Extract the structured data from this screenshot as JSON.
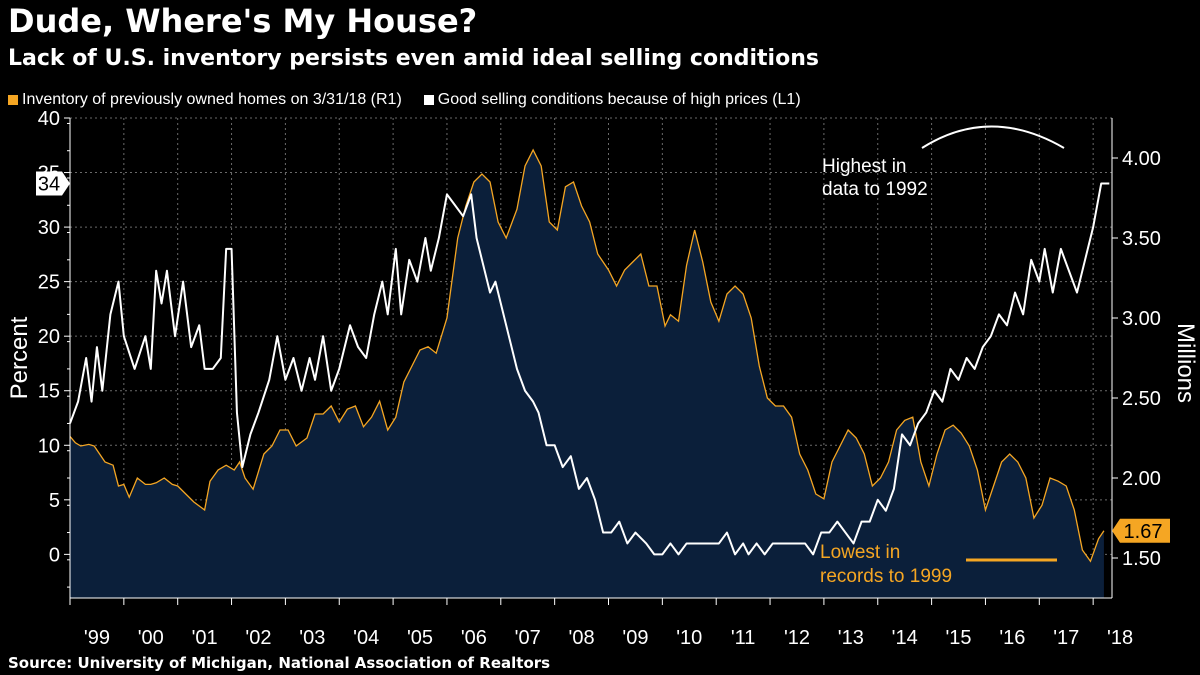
{
  "header": {
    "title": "Dude, Where's My House?",
    "subtitle": "Lack of U.S. inventory persists even amid ideal selling conditions"
  },
  "legend": {
    "inventory_label": "Inventory of previously owned homes on 3/31/18 (R1)",
    "conditions_label": "Good selling conditions because of high prices (L1)"
  },
  "source": "Source: University of Michigan, National Association of Realtors",
  "colors": {
    "background": "#000000",
    "inventory_line": "#f5a623",
    "inventory_fill": "#0b1f3a",
    "conditions_line": "#ffffff",
    "grid": "#6a6a6a"
  },
  "annotations": {
    "highest_line1": "Highest in",
    "highest_line2": "data to 1992",
    "lowest_line1": "Lowest in",
    "lowest_line2": "records to 1999"
  },
  "chart_data": {
    "type": "line",
    "x_axis": {
      "labels": [
        "'99",
        "'00",
        "'01",
        "'02",
        "'03",
        "'04",
        "'05",
        "'06",
        "'07",
        "'08",
        "'09",
        "'10",
        "'11",
        "'12",
        "'13",
        "'14",
        "'15",
        "'16",
        "'17",
        "'18"
      ],
      "range": [
        1999.0,
        2018.35
      ]
    },
    "left_axis": {
      "label": "Percent",
      "range": [
        -4,
        40
      ],
      "ticks": [
        0,
        5,
        10,
        15,
        20,
        25,
        30,
        35,
        40
      ],
      "tick_labels": [
        "0",
        "5",
        "10",
        "15",
        "20",
        "25",
        "30",
        "35",
        "40"
      ],
      "last_value_label": "34"
    },
    "right_axis": {
      "label": "Millions",
      "range": [
        1.25,
        4.25
      ],
      "ticks": [
        1.5,
        2.0,
        2.5,
        3.0,
        3.5,
        4.0
      ],
      "tick_labels": [
        "1.50",
        "2.00",
        "2.50",
        "3.00",
        "3.50",
        "4.00"
      ],
      "last_value_label": "1.67"
    },
    "series": [
      {
        "name": "Good selling conditions because of high prices (L1)",
        "axis": "left",
        "style": "line",
        "points": [
          [
            1999.0,
            12
          ],
          [
            1999.15,
            14
          ],
          [
            1999.3,
            18
          ],
          [
            1999.4,
            14
          ],
          [
            1999.5,
            19
          ],
          [
            1999.6,
            15
          ],
          [
            1999.75,
            22
          ],
          [
            1999.9,
            25
          ],
          [
            2000.0,
            20
          ],
          [
            2000.2,
            17
          ],
          [
            2000.4,
            20
          ],
          [
            2000.5,
            17
          ],
          [
            2000.6,
            26
          ],
          [
            2000.7,
            23
          ],
          [
            2000.8,
            26
          ],
          [
            2000.95,
            20
          ],
          [
            2001.1,
            25
          ],
          [
            2001.25,
            19
          ],
          [
            2001.4,
            21
          ],
          [
            2001.5,
            17
          ],
          [
            2001.65,
            17
          ],
          [
            2001.8,
            18
          ],
          [
            2001.9,
            28
          ],
          [
            2002.0,
            28
          ],
          [
            2002.1,
            13
          ],
          [
            2002.2,
            8
          ],
          [
            2002.35,
            11
          ],
          [
            2002.5,
            13
          ],
          [
            2002.7,
            16
          ],
          [
            2002.85,
            20
          ],
          [
            2003.0,
            16
          ],
          [
            2003.15,
            18
          ],
          [
            2003.3,
            15
          ],
          [
            2003.45,
            18
          ],
          [
            2003.55,
            16
          ],
          [
            2003.7,
            20
          ],
          [
            2003.85,
            15
          ],
          [
            2004.0,
            17
          ],
          [
            2004.2,
            21
          ],
          [
            2004.35,
            19
          ],
          [
            2004.5,
            18
          ],
          [
            2004.65,
            22
          ],
          [
            2004.8,
            25
          ],
          [
            2004.9,
            22
          ],
          [
            2005.05,
            28
          ],
          [
            2005.15,
            22
          ],
          [
            2005.3,
            27
          ],
          [
            2005.45,
            25
          ],
          [
            2005.6,
            29
          ],
          [
            2005.7,
            26
          ],
          [
            2005.85,
            29
          ],
          [
            2006.0,
            33
          ],
          [
            2006.15,
            32
          ],
          [
            2006.3,
            31
          ],
          [
            2006.45,
            33
          ],
          [
            2006.55,
            29
          ],
          [
            2006.65,
            27
          ],
          [
            2006.8,
            24
          ],
          [
            2006.9,
            25
          ],
          [
            2007.0,
            23
          ],
          [
            2007.15,
            20
          ],
          [
            2007.3,
            17
          ],
          [
            2007.45,
            15
          ],
          [
            2007.6,
            14
          ],
          [
            2007.7,
            13
          ],
          [
            2007.85,
            10
          ],
          [
            2008.0,
            10
          ],
          [
            2008.15,
            8
          ],
          [
            2008.3,
            9
          ],
          [
            2008.45,
            6
          ],
          [
            2008.6,
            7
          ],
          [
            2008.75,
            5
          ],
          [
            2008.9,
            2
          ],
          [
            2009.05,
            2
          ],
          [
            2009.2,
            3
          ],
          [
            2009.35,
            1
          ],
          [
            2009.5,
            2
          ],
          [
            2009.7,
            1
          ],
          [
            2009.85,
            0
          ],
          [
            2010.0,
            0
          ],
          [
            2010.15,
            1
          ],
          [
            2010.3,
            0
          ],
          [
            2010.45,
            1
          ],
          [
            2010.6,
            1
          ],
          [
            2010.75,
            1
          ],
          [
            2010.9,
            1
          ],
          [
            2011.05,
            1
          ],
          [
            2011.2,
            2
          ],
          [
            2011.35,
            0
          ],
          [
            2011.5,
            1
          ],
          [
            2011.6,
            0
          ],
          [
            2011.75,
            1
          ],
          [
            2011.9,
            0
          ],
          [
            2012.05,
            1
          ],
          [
            2012.2,
            1
          ],
          [
            2012.35,
            1
          ],
          [
            2012.5,
            1
          ],
          [
            2012.65,
            1
          ],
          [
            2012.8,
            0
          ],
          [
            2012.95,
            2
          ],
          [
            2013.1,
            2
          ],
          [
            2013.25,
            3
          ],
          [
            2013.4,
            2
          ],
          [
            2013.55,
            1
          ],
          [
            2013.7,
            3
          ],
          [
            2013.85,
            3
          ],
          [
            2014.0,
            5
          ],
          [
            2014.15,
            4
          ],
          [
            2014.3,
            6
          ],
          [
            2014.45,
            11
          ],
          [
            2014.6,
            10
          ],
          [
            2014.75,
            12
          ],
          [
            2014.9,
            13
          ],
          [
            2015.05,
            15
          ],
          [
            2015.2,
            14
          ],
          [
            2015.35,
            17
          ],
          [
            2015.5,
            16
          ],
          [
            2015.65,
            18
          ],
          [
            2015.8,
            17
          ],
          [
            2015.95,
            19
          ],
          [
            2016.1,
            20
          ],
          [
            2016.25,
            22
          ],
          [
            2016.4,
            21
          ],
          [
            2016.55,
            24
          ],
          [
            2016.7,
            22
          ],
          [
            2016.85,
            27
          ],
          [
            2017.0,
            25
          ],
          [
            2017.1,
            28
          ],
          [
            2017.25,
            24
          ],
          [
            2017.4,
            28
          ],
          [
            2017.55,
            26
          ],
          [
            2017.7,
            24
          ],
          [
            2017.85,
            27
          ],
          [
            2018.0,
            30
          ],
          [
            2018.15,
            34
          ],
          [
            2018.3,
            34
          ]
        ]
      },
      {
        "name": "Inventory of previously owned homes on 3/31/18 (R1)",
        "axis": "right",
        "style": "area",
        "points": [
          [
            1999.0,
            2.26
          ],
          [
            1999.1,
            2.22
          ],
          [
            1999.2,
            2.2
          ],
          [
            1999.35,
            2.21
          ],
          [
            1999.45,
            2.2
          ],
          [
            1999.55,
            2.15
          ],
          [
            1999.65,
            2.1
          ],
          [
            1999.8,
            2.08
          ],
          [
            1999.9,
            1.95
          ],
          [
            2000.0,
            1.96
          ],
          [
            2000.1,
            1.88
          ],
          [
            2000.25,
            2.0
          ],
          [
            2000.4,
            1.96
          ],
          [
            2000.5,
            1.96
          ],
          [
            2000.6,
            1.97
          ],
          [
            2000.75,
            2.0
          ],
          [
            2000.9,
            1.96
          ],
          [
            2001.0,
            1.95
          ],
          [
            2001.15,
            1.9
          ],
          [
            2001.3,
            1.85
          ],
          [
            2001.5,
            1.8
          ],
          [
            2001.6,
            1.98
          ],
          [
            2001.75,
            2.05
          ],
          [
            2001.9,
            2.08
          ],
          [
            2002.05,
            2.05
          ],
          [
            2002.15,
            2.1
          ],
          [
            2002.25,
            2.0
          ],
          [
            2002.4,
            1.93
          ],
          [
            2002.5,
            2.04
          ],
          [
            2002.6,
            2.15
          ],
          [
            2002.75,
            2.2
          ],
          [
            2002.9,
            2.3
          ],
          [
            2003.05,
            2.3
          ],
          [
            2003.2,
            2.2
          ],
          [
            2003.4,
            2.25
          ],
          [
            2003.55,
            2.4
          ],
          [
            2003.7,
            2.4
          ],
          [
            2003.85,
            2.45
          ],
          [
            2004.0,
            2.35
          ],
          [
            2004.15,
            2.43
          ],
          [
            2004.3,
            2.45
          ],
          [
            2004.45,
            2.32
          ],
          [
            2004.6,
            2.38
          ],
          [
            2004.75,
            2.48
          ],
          [
            2004.9,
            2.3
          ],
          [
            2005.05,
            2.38
          ],
          [
            2005.2,
            2.6
          ],
          [
            2005.35,
            2.7
          ],
          [
            2005.5,
            2.8
          ],
          [
            2005.65,
            2.82
          ],
          [
            2005.8,
            2.78
          ],
          [
            2006.0,
            3.0
          ],
          [
            2006.2,
            3.5
          ],
          [
            2006.35,
            3.7
          ],
          [
            2006.5,
            3.85
          ],
          [
            2006.65,
            3.9
          ],
          [
            2006.8,
            3.85
          ],
          [
            2006.95,
            3.6
          ],
          [
            2007.1,
            3.5
          ],
          [
            2007.3,
            3.68
          ],
          [
            2007.45,
            3.95
          ],
          [
            2007.6,
            4.05
          ],
          [
            2007.75,
            3.95
          ],
          [
            2007.9,
            3.6
          ],
          [
            2008.05,
            3.55
          ],
          [
            2008.2,
            3.82
          ],
          [
            2008.35,
            3.85
          ],
          [
            2008.5,
            3.7
          ],
          [
            2008.65,
            3.6
          ],
          [
            2008.8,
            3.4
          ],
          [
            2009.0,
            3.3
          ],
          [
            2009.15,
            3.2
          ],
          [
            2009.3,
            3.3
          ],
          [
            2009.45,
            3.35
          ],
          [
            2009.6,
            3.4
          ],
          [
            2009.75,
            3.2
          ],
          [
            2009.9,
            3.2
          ],
          [
            2010.05,
            2.95
          ],
          [
            2010.15,
            3.02
          ],
          [
            2010.3,
            2.98
          ],
          [
            2010.45,
            3.33
          ],
          [
            2010.6,
            3.55
          ],
          [
            2010.75,
            3.35
          ],
          [
            2010.9,
            3.1
          ],
          [
            2011.05,
            2.98
          ],
          [
            2011.2,
            3.15
          ],
          [
            2011.35,
            3.2
          ],
          [
            2011.5,
            3.15
          ],
          [
            2011.65,
            3.0
          ],
          [
            2011.8,
            2.7
          ],
          [
            2011.95,
            2.5
          ],
          [
            2012.1,
            2.45
          ],
          [
            2012.25,
            2.45
          ],
          [
            2012.4,
            2.38
          ],
          [
            2012.55,
            2.15
          ],
          [
            2012.7,
            2.05
          ],
          [
            2012.85,
            1.9
          ],
          [
            2013.0,
            1.87
          ],
          [
            2013.15,
            2.1
          ],
          [
            2013.3,
            2.2
          ],
          [
            2013.45,
            2.3
          ],
          [
            2013.6,
            2.25
          ],
          [
            2013.75,
            2.15
          ],
          [
            2013.9,
            1.95
          ],
          [
            2014.05,
            2.0
          ],
          [
            2014.2,
            2.1
          ],
          [
            2014.35,
            2.3
          ],
          [
            2014.5,
            2.36
          ],
          [
            2014.65,
            2.38
          ],
          [
            2014.8,
            2.1
          ],
          [
            2014.95,
            1.95
          ],
          [
            2015.1,
            2.15
          ],
          [
            2015.25,
            2.3
          ],
          [
            2015.4,
            2.33
          ],
          [
            2015.55,
            2.28
          ],
          [
            2015.7,
            2.2
          ],
          [
            2015.85,
            2.05
          ],
          [
            2016.0,
            1.8
          ],
          [
            2016.15,
            1.95
          ],
          [
            2016.3,
            2.1
          ],
          [
            2016.45,
            2.15
          ],
          [
            2016.6,
            2.1
          ],
          [
            2016.75,
            2.0
          ],
          [
            2016.9,
            1.75
          ],
          [
            2017.05,
            1.83
          ],
          [
            2017.2,
            2.0
          ],
          [
            2017.35,
            1.98
          ],
          [
            2017.5,
            1.95
          ],
          [
            2017.65,
            1.8
          ],
          [
            2017.8,
            1.55
          ],
          [
            2017.95,
            1.48
          ],
          [
            2018.1,
            1.62
          ],
          [
            2018.2,
            1.67
          ]
        ]
      }
    ]
  }
}
